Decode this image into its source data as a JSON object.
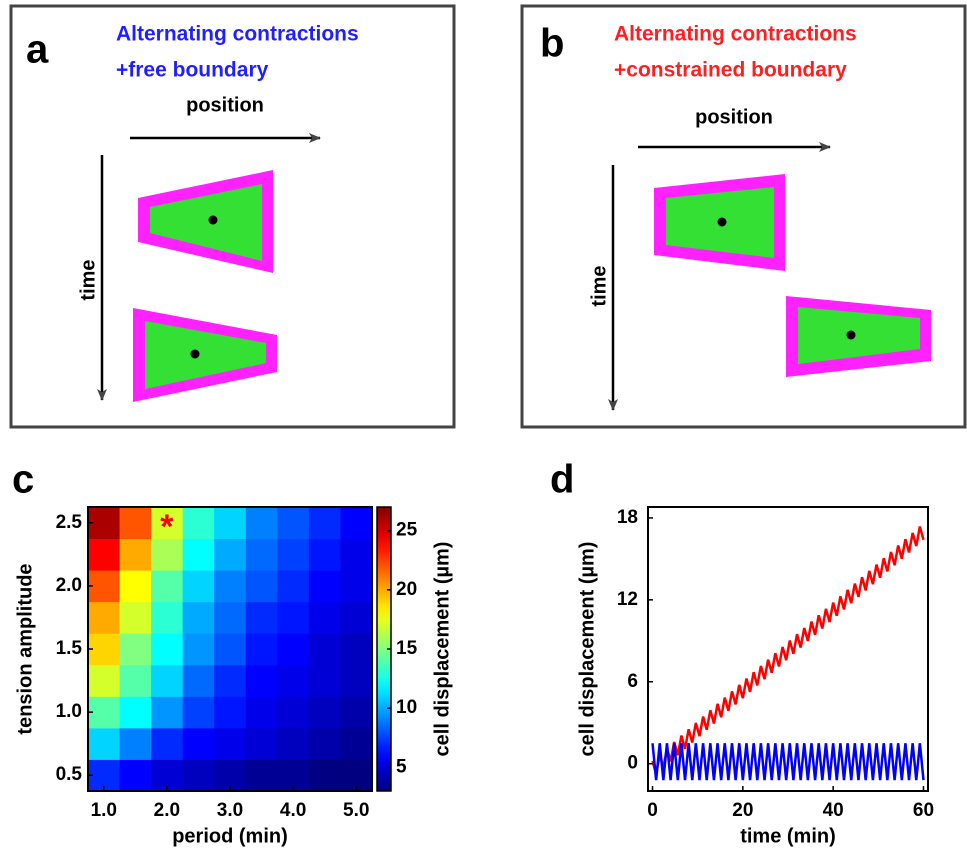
{
  "panels": [
    {
      "letter": "a",
      "title": [
        "Alternating contractions",
        "+free boundary"
      ],
      "title_color": "#1f1fff",
      "x_label": "position",
      "y_label": "time"
    },
    {
      "letter": "b",
      "title": [
        "Alternating contractions",
        "+constrained boundary"
      ],
      "title_color": "#ff1f1f",
      "x_label": "position",
      "y_label": "time"
    }
  ],
  "chart_data": [
    {
      "type": "heatmap",
      "letter": "c",
      "x_label": "period (min)",
      "y_label": "tension amplitude",
      "colormap": "jet",
      "x": [
        1.0,
        1.5,
        2.0,
        2.5,
        3.0,
        3.5,
        4.0,
        4.5,
        5.0
      ],
      "y": [
        0.5,
        0.75,
        1.0,
        1.25,
        1.5,
        1.75,
        2.0,
        2.25,
        2.5
      ],
      "values": [
        [
          7,
          6,
          5,
          4.5,
          4,
          3.5,
          3.5,
          3,
          3
        ],
        [
          11,
          9,
          7,
          6,
          5.5,
          5,
          4.5,
          4,
          3.5
        ],
        [
          14,
          12,
          9.5,
          7.5,
          6.5,
          5.5,
          5,
          4.5,
          4
        ],
        [
          17,
          14,
          11,
          8.5,
          7,
          6,
          5.5,
          5,
          4.5
        ],
        [
          19,
          15,
          12,
          9.5,
          8,
          6.5,
          6,
          5,
          4.5
        ],
        [
          20,
          17,
          13,
          10,
          8.5,
          7,
          6.5,
          5.5,
          5
        ],
        [
          22,
          18,
          14,
          11,
          9,
          8,
          7,
          6,
          5.5
        ],
        [
          24,
          20,
          16,
          12,
          10,
          8.5,
          7.5,
          6.5,
          5.5
        ],
        [
          26,
          22,
          17,
          13,
          11,
          9,
          8,
          7,
          6
        ]
      ],
      "xlim": [
        0.75,
        5.25
      ],
      "ylim": [
        0.375,
        2.625
      ],
      "xticks": [
        {
          "value": 1,
          "label": "1.0"
        },
        {
          "value": 2,
          "label": "2.0"
        },
        {
          "value": 3,
          "label": "3.0"
        },
        {
          "value": 4,
          "label": "4.0"
        },
        {
          "value": 5,
          "label": "5.0"
        }
      ],
      "yticks": [
        0.5,
        {
          "value": 1,
          "label": "1.0"
        },
        1.5,
        {
          "value": 2,
          "label": "2.0"
        },
        2.5
      ],
      "colorbar": {
        "label": "cell displacement (µm)",
        "clim": [
          3,
          27
        ],
        "ticks": [
          5,
          10,
          15,
          20,
          25
        ]
      },
      "annotation": {
        "text": "*",
        "x": 2.0,
        "y": 2.5,
        "color": "#ff0000"
      }
    },
    {
      "type": "line",
      "letter": "d",
      "x_label": "time (min)",
      "y_label": "cell displacement (µm)",
      "x": [
        0,
        0.8,
        1.6,
        2.4,
        3.2,
        4,
        4.8,
        5.6,
        6.4,
        7.2,
        8,
        8.8,
        9.6,
        10.4,
        11.2,
        12,
        12.8,
        13.6,
        14.4,
        15.2,
        16,
        16.8,
        17.6,
        18.4,
        19.2,
        20,
        20.8,
        21.6,
        22.4,
        23.2,
        24,
        24.8,
        25.6,
        26.4,
        27.2,
        28,
        28.8,
        29.6,
        30.4,
        31.2,
        32,
        32.8,
        33.6,
        34.4,
        35.2,
        36,
        36.8,
        37.6,
        38.4,
        39.2,
        40,
        40.8,
        41.6,
        42.4,
        43.2,
        44,
        44.8,
        45.6,
        46.4,
        47.2,
        48,
        48.8,
        49.6,
        50.4,
        51.2,
        52,
        52.8,
        53.6,
        54.4,
        55.2,
        56,
        56.8,
        57.6,
        58.4,
        59.2,
        60
      ],
      "series": [
        {
          "color": "#ff0000",
          "values": [
            0.2,
            -0.77,
            0.66,
            -0.3,
            1.13,
            0.16,
            1.59,
            0.62,
            2.06,
            1.09,
            2.52,
            1.55,
            2.98,
            2.02,
            3.45,
            2.48,
            3.91,
            2.94,
            4.38,
            3.41,
            4.84,
            3.87,
            5.3,
            4.34,
            5.77,
            4.8,
            6.23,
            5.26,
            6.7,
            5.73,
            7.16,
            6.19,
            7.62,
            6.66,
            8.09,
            7.12,
            8.55,
            7.58,
            9.02,
            8.05,
            9.48,
            8.51,
            9.94,
            8.98,
            10.41,
            9.44,
            10.87,
            9.9,
            11.34,
            10.37,
            11.8,
            10.83,
            12.26,
            11.3,
            12.73,
            11.76,
            13.19,
            12.22,
            13.66,
            12.69,
            14.12,
            13.15,
            14.58,
            13.62,
            15.05,
            14.08,
            15.51,
            14.54,
            15.98,
            15.01,
            16.44,
            15.47,
            16.9,
            15.94,
            17.37,
            16.4
          ]
        },
        {
          "color": "#0000ff",
          "values": [
            1.5,
            -1.2,
            1.5,
            -1.2,
            1.5,
            -1.2,
            1.5,
            -1.2,
            1.5,
            -1.2,
            1.5,
            -1.2,
            1.5,
            -1.2,
            1.5,
            -1.2,
            1.5,
            -1.2,
            1.5,
            -1.2,
            1.5,
            -1.2,
            1.5,
            -1.2,
            1.5,
            -1.2,
            1.5,
            -1.2,
            1.5,
            -1.2,
            1.5,
            -1.2,
            1.5,
            -1.2,
            1.5,
            -1.2,
            1.5,
            -1.2,
            1.5,
            -1.2,
            1.5,
            -1.2,
            1.5,
            -1.2,
            1.5,
            -1.2,
            1.5,
            -1.2,
            1.5,
            -1.2,
            1.5,
            -1.2,
            1.5,
            -1.2,
            1.5,
            -1.2,
            1.5,
            -1.2,
            1.5,
            -1.2,
            1.5,
            -1.2,
            1.5,
            -1.2,
            1.5,
            -1.2,
            1.5,
            -1.2,
            1.5,
            -1.2,
            1.5,
            -1.2,
            1.5,
            -1.2,
            1.5,
            -1.2
          ]
        }
      ],
      "xlim": [
        -1,
        61
      ],
      "ylim": [
        -2,
        18.8
      ],
      "xticks": [
        0,
        20,
        40,
        60
      ],
      "yticks": [
        0,
        6,
        12,
        18
      ]
    }
  ]
}
